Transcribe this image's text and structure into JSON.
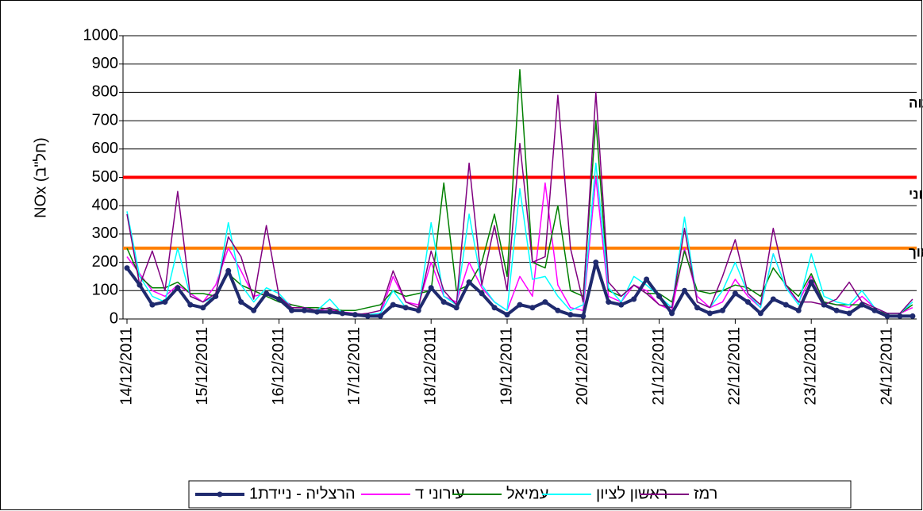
{
  "chart_data": {
    "type": "line",
    "y_label": "NOx (חל\"ב)",
    "categories": [
      "14/12/2011",
      null,
      null,
      null,
      null,
      null,
      "15/12/2011",
      null,
      null,
      null,
      null,
      null,
      "16/12/2011",
      null,
      null,
      null,
      null,
      null,
      "17/12/2011",
      null,
      null,
      null,
      null,
      null,
      "18/12/2011",
      null,
      null,
      null,
      null,
      null,
      "19/12/2011",
      null,
      null,
      null,
      null,
      null,
      "20/12/2011",
      null,
      null,
      null,
      null,
      null,
      "21/12/2011",
      null,
      null,
      null,
      null,
      null,
      "22/12/2011",
      null,
      null,
      null,
      null,
      null,
      "23/12/2011",
      null,
      null,
      null,
      null,
      null,
      "24/12/2011",
      null,
      null
    ],
    "ylim": [
      0,
      1000
    ],
    "yticks": [
      0,
      100,
      200,
      300,
      400,
      500,
      600,
      700,
      800,
      900,
      1000
    ],
    "grid": true,
    "legend": "bottom",
    "series": [
      {
        "name": "הרצליה - ניידת1",
        "color": "#1f2a6e",
        "values": [
          180,
          120,
          50,
          60,
          110,
          50,
          40,
          80,
          170,
          60,
          30,
          90,
          70,
          30,
          30,
          25,
          25,
          20,
          15,
          10,
          10,
          50,
          40,
          30,
          110,
          60,
          40,
          130,
          90,
          40,
          15,
          50,
          40,
          60,
          30,
          15,
          10,
          200,
          60,
          50,
          70,
          140,
          80,
          20,
          100,
          40,
          20,
          30,
          90,
          60,
          20,
          70,
          50,
          30,
          130,
          50,
          30,
          20,
          50,
          30,
          10,
          10,
          10
        ]
      },
      {
        "name": "עירוני ד",
        "color": "#ff00ff",
        "values": [
          220,
          160,
          100,
          80,
          120,
          90,
          60,
          120,
          250,
          170,
          80,
          90,
          70,
          50,
          40,
          30,
          30,
          25,
          20,
          15,
          15,
          150,
          60,
          50,
          200,
          80,
          60,
          200,
          110,
          60,
          30,
          150,
          80,
          480,
          120,
          40,
          30,
          500,
          80,
          60,
          120,
          100,
          50,
          30,
          250,
          80,
          40,
          60,
          140,
          80,
          40,
          230,
          110,
          60,
          150,
          60,
          50,
          40,
          80,
          40,
          20,
          20,
          40
        ]
      },
      {
        "name": "עמיאל",
        "color": "#008000",
        "values": [
          250,
          150,
          110,
          110,
          130,
          90,
          90,
          80,
          160,
          120,
          100,
          80,
          60,
          50,
          40,
          40,
          35,
          30,
          30,
          40,
          50,
          100,
          80,
          90,
          100,
          480,
          100,
          120,
          200,
          370,
          150,
          880,
          200,
          180,
          400,
          100,
          80,
          700,
          100,
          80,
          120,
          90,
          90,
          60,
          240,
          100,
          90,
          100,
          120,
          110,
          80,
          180,
          120,
          80,
          160,
          60,
          50,
          50,
          50,
          30,
          20,
          20,
          50
        ]
      },
      {
        "name": "ראשון לציון",
        "color": "#00ffff",
        "values": [
          380,
          150,
          80,
          60,
          250,
          80,
          60,
          80,
          340,
          120,
          60,
          110,
          90,
          40,
          40,
          30,
          70,
          20,
          15,
          15,
          20,
          100,
          40,
          30,
          340,
          80,
          50,
          370,
          120,
          60,
          30,
          460,
          140,
          150,
          80,
          30,
          50,
          550,
          110,
          60,
          150,
          120,
          80,
          40,
          360,
          60,
          40,
          100,
          200,
          90,
          40,
          230,
          110,
          50,
          230,
          80,
          60,
          50,
          100,
          40,
          20,
          20,
          60
        ]
      },
      {
        "name": "רמז",
        "color": "#800080",
        "values": [
          370,
          120,
          240,
          100,
          450,
          80,
          60,
          90,
          290,
          220,
          70,
          330,
          80,
          40,
          40,
          30,
          40,
          20,
          15,
          20,
          30,
          170,
          60,
          40,
          240,
          100,
          50,
          550,
          120,
          330,
          100,
          620,
          200,
          220,
          790,
          250,
          60,
          800,
          130,
          80,
          120,
          90,
          50,
          40,
          320,
          60,
          40,
          150,
          280,
          90,
          50,
          320,
          120,
          60,
          60,
          50,
          70,
          130,
          60,
          40,
          20,
          20,
          70
        ]
      }
    ],
    "thresholds": [
      {
        "value": 500,
        "color": "#ff0000"
      },
      {
        "value": 250,
        "color": "#ff8000"
      }
    ],
    "annotations": [
      {
        "text": "זיהום אוויר גבוה",
        "color": "#ff0000"
      },
      {
        "text": "זיהום אוויר בינוני",
        "color": "#ff8000"
      },
      {
        "text": "זיהום אוויר נמוך",
        "color": "#008000"
      }
    ]
  }
}
